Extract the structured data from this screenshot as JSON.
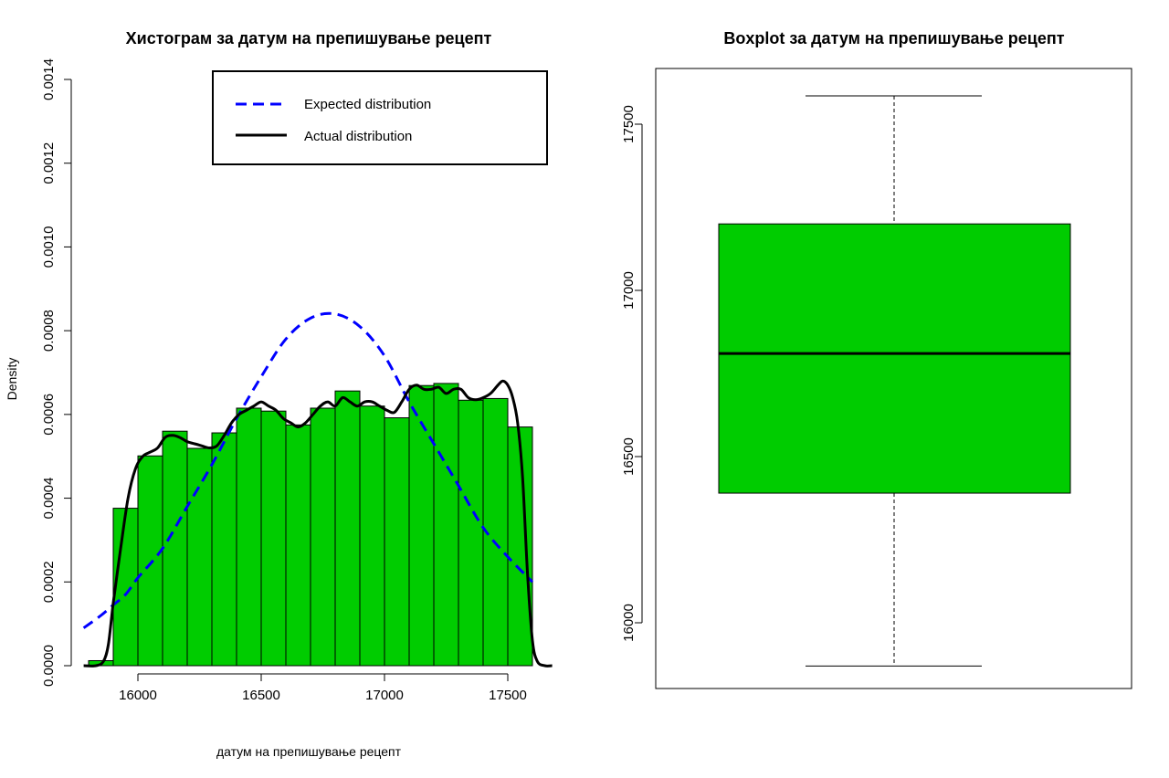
{
  "chart_data": [
    {
      "type": "bar",
      "subtype": "histogram",
      "title": "Хистограм за  датум на препишување рецепт",
      "xlabel": "датум на препишување рецепт",
      "ylabel": "Density",
      "xlim": [
        15800,
        17700
      ],
      "ylim": [
        0,
        0.0014
      ],
      "x_ticks": [
        16000,
        16500,
        17000,
        17500
      ],
      "x_tick_labels": [
        "16000",
        "16500",
        "17000",
        "17500"
      ],
      "y_ticks": [
        0,
        0.0002,
        0.0004,
        0.0006,
        0.0008,
        0.001,
        0.0012,
        0.0014
      ],
      "y_tick_labels": [
        "0.0000",
        "0.0002",
        "0.0004",
        "0.0006",
        "0.0008",
        "0.0010",
        "0.0012",
        "0.0014"
      ],
      "bar_color": "#00cc00",
      "bins": [
        {
          "start": 15800,
          "end": 15900,
          "density": 1.2e-05
        },
        {
          "start": 15900,
          "end": 16000,
          "density": 0.000376
        },
        {
          "start": 16000,
          "end": 16100,
          "density": 0.000501
        },
        {
          "start": 16100,
          "end": 16200,
          "density": 0.00056
        },
        {
          "start": 16200,
          "end": 16300,
          "density": 0.000519
        },
        {
          "start": 16300,
          "end": 16400,
          "density": 0.000556
        },
        {
          "start": 16400,
          "end": 16500,
          "density": 0.000615
        },
        {
          "start": 16500,
          "end": 16600,
          "density": 0.000608
        },
        {
          "start": 16600,
          "end": 16700,
          "density": 0.000575
        },
        {
          "start": 16700,
          "end": 16800,
          "density": 0.000615
        },
        {
          "start": 16800,
          "end": 16900,
          "density": 0.000656
        },
        {
          "start": 16900,
          "end": 17000,
          "density": 0.00062
        },
        {
          "start": 17000,
          "end": 17100,
          "density": 0.000592
        },
        {
          "start": 17100,
          "end": 17200,
          "density": 0.000669
        },
        {
          "start": 17200,
          "end": 17300,
          "density": 0.000674
        },
        {
          "start": 17300,
          "end": 17400,
          "density": 0.000634
        },
        {
          "start": 17400,
          "end": 17500,
          "density": 0.000638
        },
        {
          "start": 17500,
          "end": 17600,
          "density": 0.00057
        }
      ],
      "series": [
        {
          "name": "Expected distribution",
          "style": "dashed",
          "color": "#0000ff",
          "x": [
            15780,
            15850,
            15900,
            15950,
            16000,
            16100,
            16200,
            16300,
            16400,
            16500,
            16600,
            16700,
            16800,
            16900,
            17000,
            17100,
            17200,
            17300,
            17400,
            17500,
            17600
          ],
          "y": [
            9e-05,
            0.00012,
            0.000145,
            0.00017,
            0.00021,
            0.00028,
            0.00038,
            0.00048,
            0.00059,
            0.00069,
            0.00078,
            0.00083,
            0.00084,
            0.00081,
            0.00074,
            0.00063,
            0.00053,
            0.00043,
            0.00033,
            0.00026,
            0.0002
          ]
        },
        {
          "name": "Actual distribution",
          "style": "solid",
          "color": "#000000",
          "x": [
            15780,
            15830,
            15860,
            15880,
            15900,
            15930,
            15960,
            15990,
            16020,
            16050,
            16080,
            16110,
            16140,
            16170,
            16200,
            16230,
            16260,
            16290,
            16320,
            16350,
            16380,
            16410,
            16440,
            16470,
            16500,
            16530,
            16560,
            16590,
            16620,
            16650,
            16680,
            16710,
            16740,
            16770,
            16800,
            16830,
            16860,
            16890,
            16920,
            16950,
            16980,
            17010,
            17040,
            17070,
            17100,
            17130,
            17160,
            17190,
            17220,
            17250,
            17280,
            17310,
            17340,
            17370,
            17400,
            17430,
            17460,
            17480,
            17500,
            17520,
            17540,
            17560,
            17580,
            17600,
            17620,
            17650,
            17680
          ],
          "y": [
            0.0,
            0.0,
            1e-05,
            5e-05,
            0.00015,
            0.00028,
            0.0004,
            0.00047,
            0.0005,
            0.00051,
            0.00052,
            0.000545,
            0.00055,
            0.000545,
            0.000535,
            0.00053,
            0.000525,
            0.00052,
            0.000525,
            0.00055,
            0.00058,
            0.0006,
            0.00061,
            0.00062,
            0.00063,
            0.00062,
            0.00061,
            0.00059,
            0.00058,
            0.00057,
            0.00058,
            0.0006,
            0.00062,
            0.00063,
            0.00062,
            0.00064,
            0.00063,
            0.00062,
            0.00063,
            0.00063,
            0.00062,
            0.00061,
            0.000605,
            0.00063,
            0.00066,
            0.00067,
            0.00066,
            0.00066,
            0.000665,
            0.00065,
            0.00066,
            0.00066,
            0.00064,
            0.000635,
            0.00064,
            0.00065,
            0.00067,
            0.00068,
            0.00067,
            0.00064,
            0.00058,
            0.00045,
            0.00022,
            6e-05,
            1e-05,
            0.0,
            0.0
          ]
        }
      ],
      "legend": {
        "position": "top-right",
        "entries": [
          "Expected distribution",
          "Actual distribution"
        ]
      }
    },
    {
      "type": "boxplot",
      "title": "Boxplot за  датум на препишување рецепт",
      "ylim": [
        15800,
        17650
      ],
      "y_ticks": [
        16000,
        16500,
        17000,
        17500
      ],
      "y_tick_labels": [
        "16000",
        "16500",
        "17000",
        "17500"
      ],
      "box_color": "#00cc00",
      "min": 15870,
      "q1": 16390,
      "median": 16810,
      "q3": 17200,
      "max": 17585
    }
  ]
}
